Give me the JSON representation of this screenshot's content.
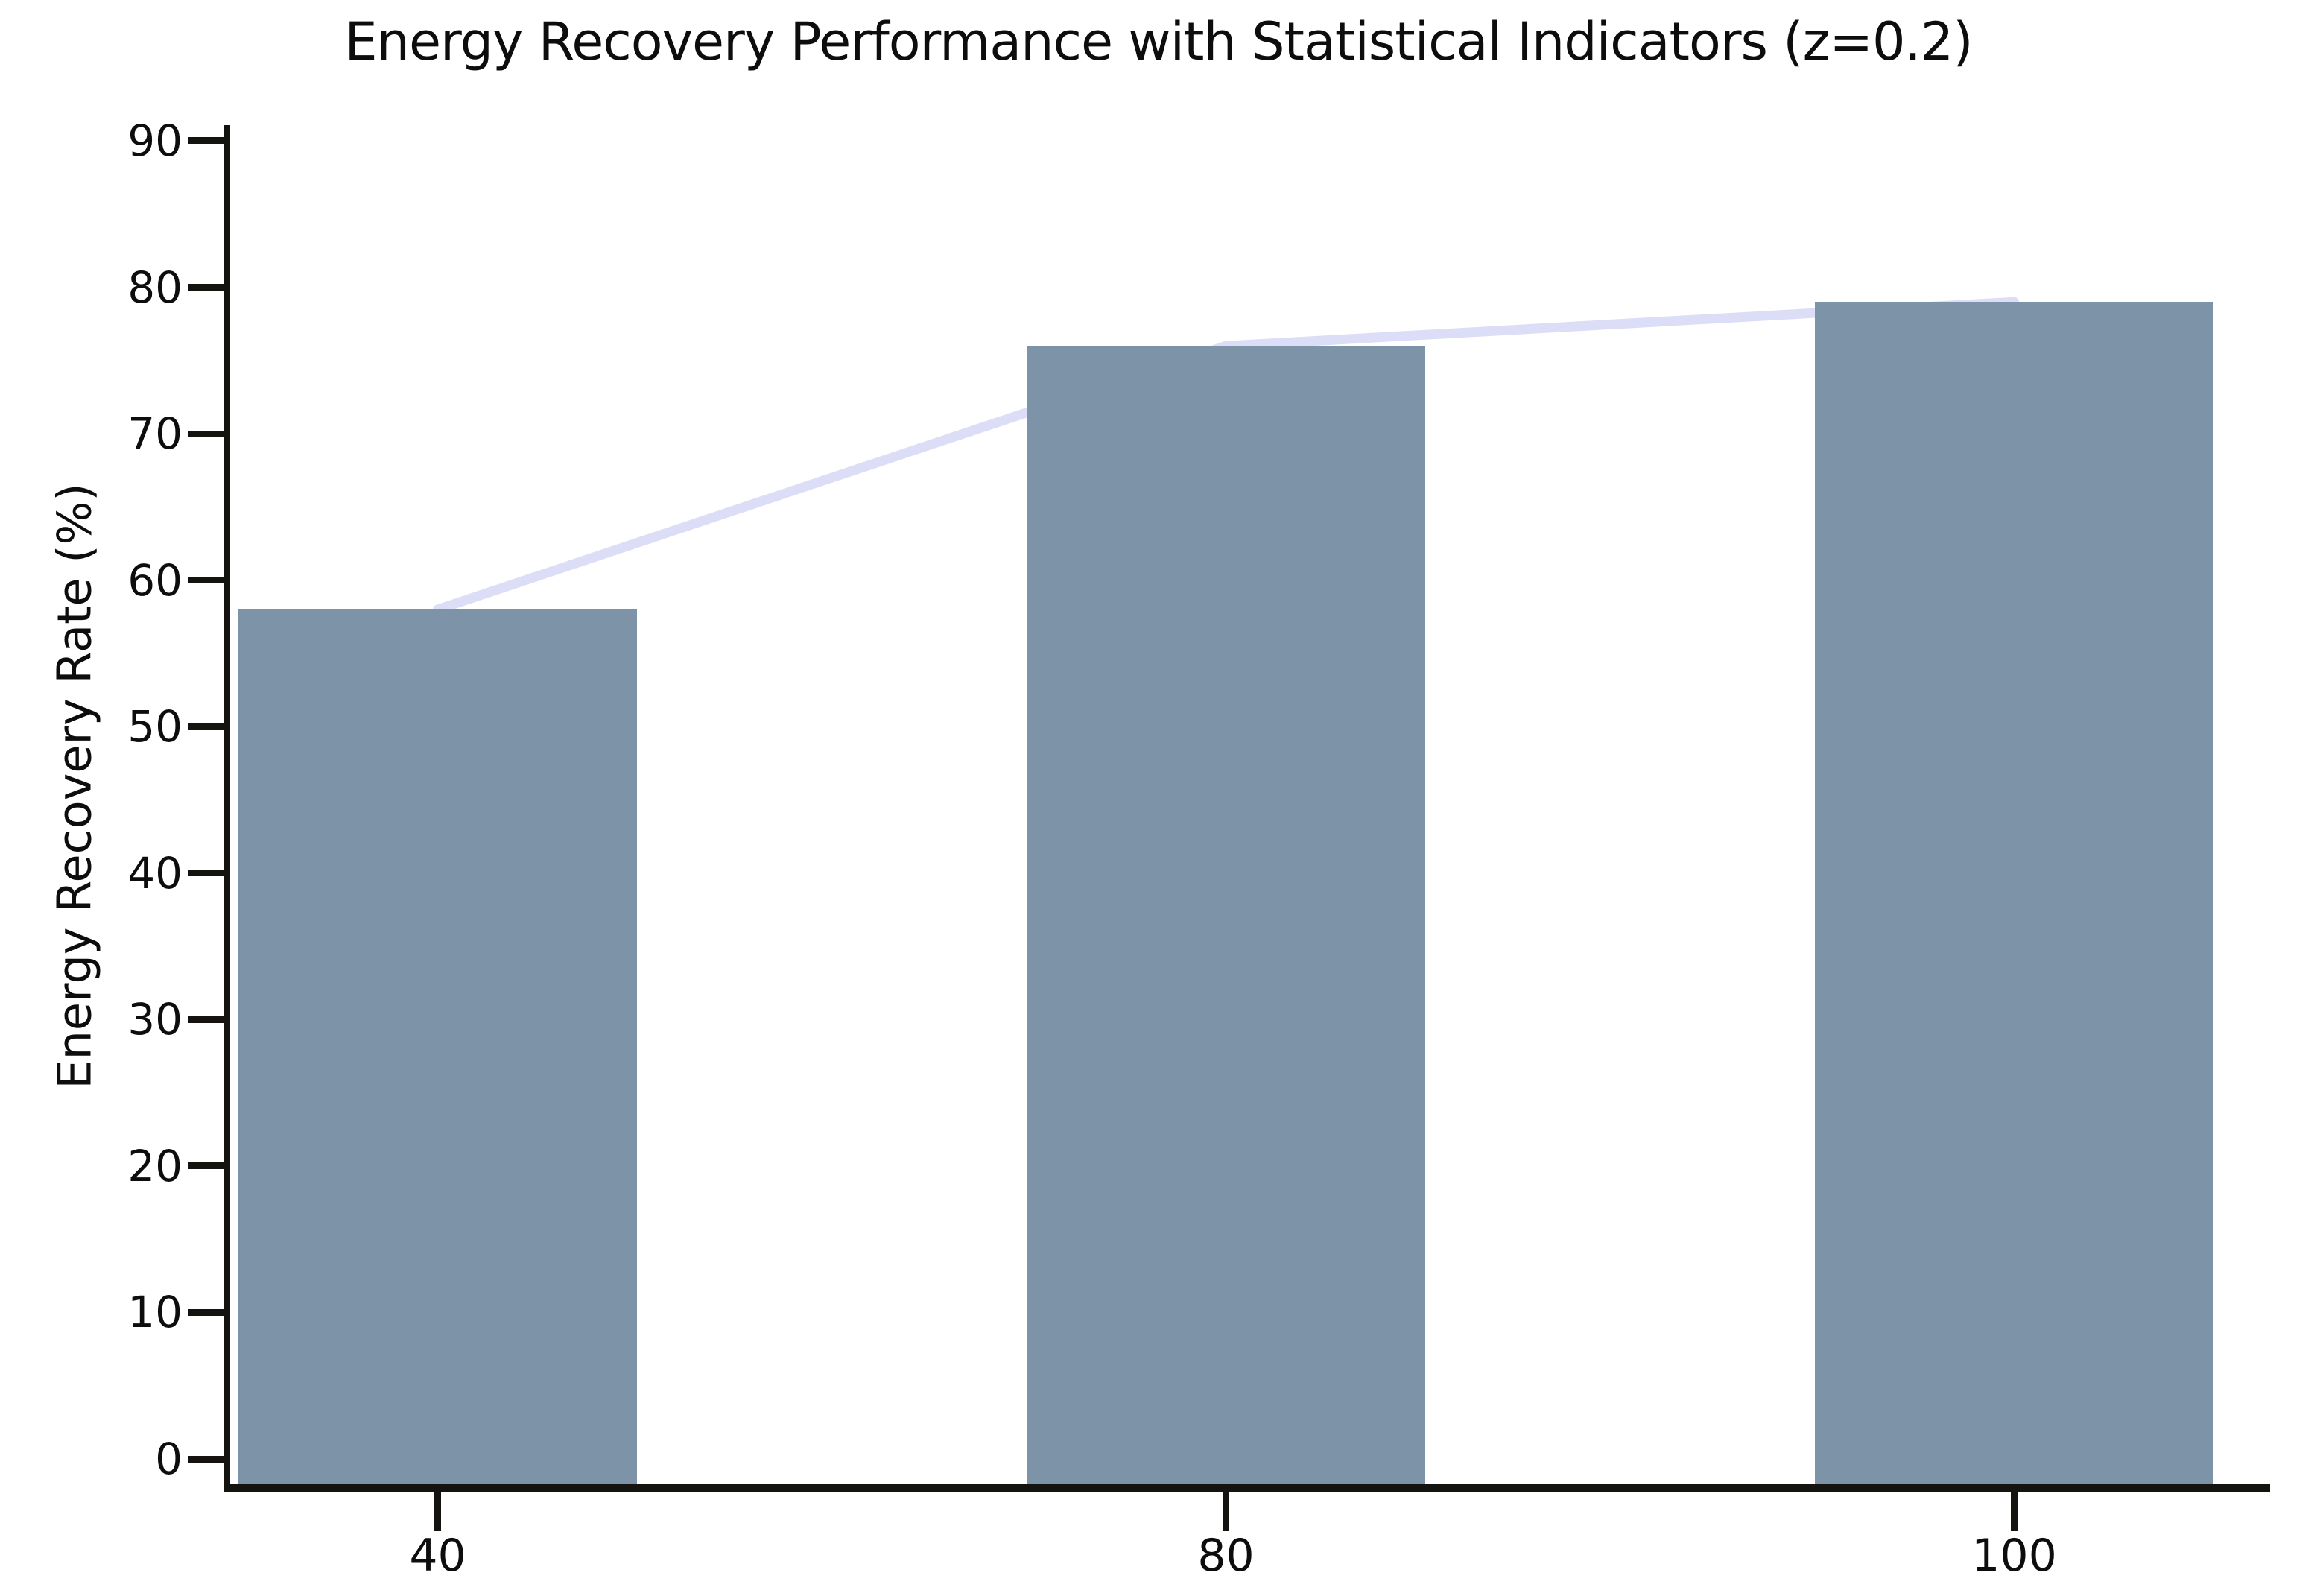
{
  "page": {
    "background_color": "#ffffff",
    "text_color": "#0d0d0d",
    "axis_color": "#151310"
  },
  "chart_data": {
    "type": "bar",
    "title": "Energy Recovery Performance with Statistical Indicators (z=0.2)",
    "xlabel": "",
    "ylabel": "Energy Recovery Rate (%)",
    "categories": [
      "40",
      "80",
      "100"
    ],
    "values": [
      58,
      76,
      79
    ],
    "series": [
      {
        "name": "energy-recovery-bars",
        "type": "bar",
        "values": [
          58,
          76,
          79
        ],
        "color": "#7d93a8"
      },
      {
        "name": "statistical-indicator-line",
        "type": "line",
        "values": [
          58,
          76,
          79
        ],
        "color": "#dcdef8"
      }
    ],
    "ylim": [
      0,
      90
    ],
    "yticks": [
      "0",
      "10",
      "20",
      "30",
      "40",
      "50",
      "60",
      "70",
      "80",
      "90"
    ],
    "grid": false,
    "legend": false,
    "notes": "indicator line drawn behind bars, connecting bar-top centers"
  }
}
